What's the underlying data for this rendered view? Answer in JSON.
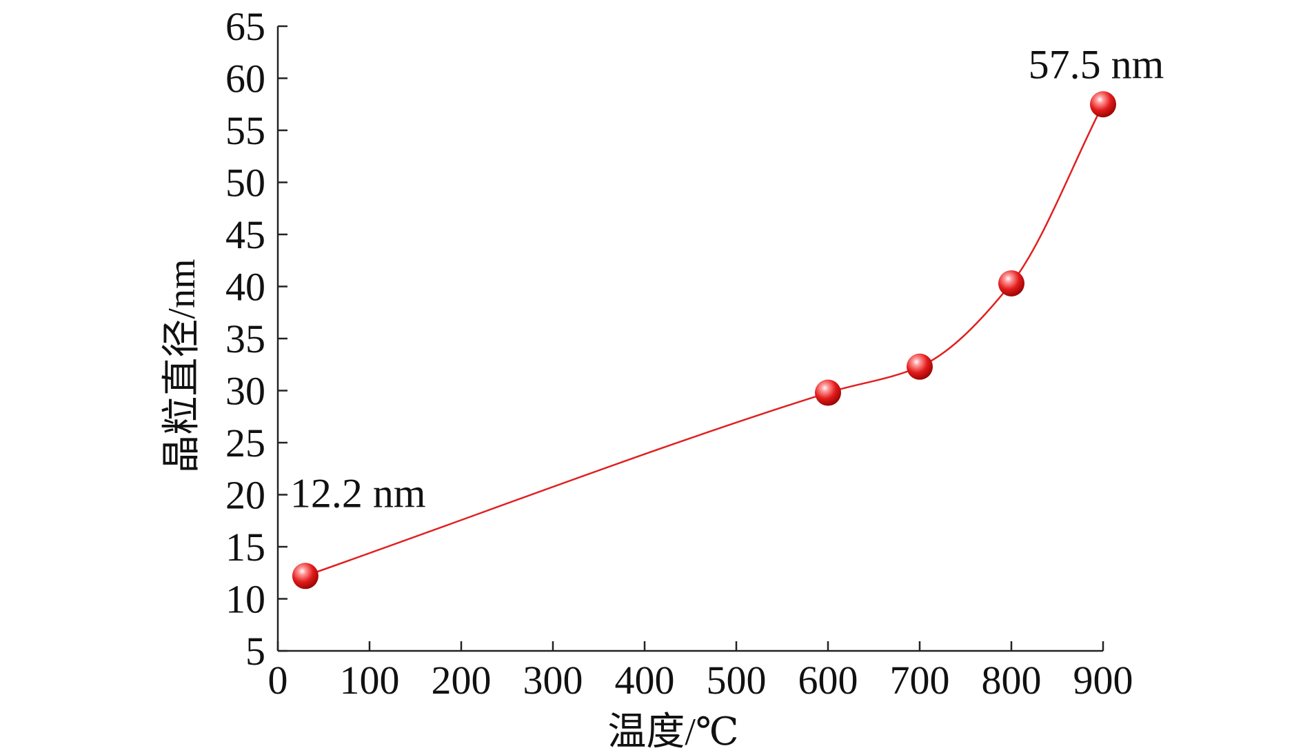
{
  "colors": {
    "line": "#e02020",
    "marker": "#e31b1b",
    "axis": "#222222"
  },
  "chart_data": {
    "type": "scatter",
    "title": "",
    "xlabel": "温度/℃",
    "ylabel": "晶粒直径/nm",
    "xlim": [
      0,
      900
    ],
    "ylim": [
      5,
      65
    ],
    "x_ticks": [
      0,
      100,
      200,
      300,
      400,
      500,
      600,
      700,
      800,
      900
    ],
    "y_ticks": [
      5,
      10,
      15,
      20,
      25,
      30,
      35,
      40,
      45,
      50,
      55,
      60,
      65
    ],
    "grid": false,
    "legend": "none",
    "series": [
      {
        "x": [
          30,
          600,
          700,
          800,
          900
        ],
        "y": [
          12.2,
          29.8,
          32.3,
          40.3,
          57.5
        ],
        "curve": "smooth",
        "marker": "sphere"
      }
    ],
    "annotations": [
      {
        "text": "12.2 nm",
        "x": 30,
        "y": 12.2
      },
      {
        "text": "57.5 nm",
        "x": 900,
        "y": 57.5
      }
    ]
  }
}
